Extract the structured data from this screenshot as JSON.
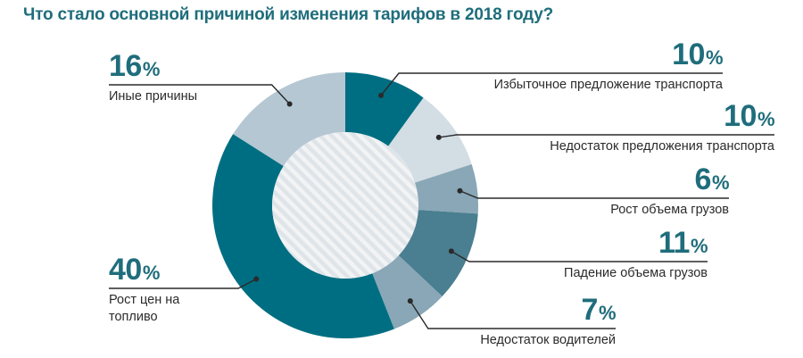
{
  "chart_data": {
    "type": "pie",
    "title": "Что стало основной причиной изменения тарифов в 2018 году?",
    "unit": "%",
    "slices": [
      {
        "label": "Избыточное предложение транспорта",
        "value": 10,
        "color": "#006e82"
      },
      {
        "label": "Недостаток предложения транспорта",
        "value": 10,
        "color": "#d3dde4"
      },
      {
        "label": "Рост объема грузов",
        "value": 6,
        "color": "#89a7b6"
      },
      {
        "label": "Падение объема грузов",
        "value": 11,
        "color": "#4a7e91"
      },
      {
        "label": "Недостаток водителей",
        "value": 7,
        "color": "#89a7b6"
      },
      {
        "label": "Рост цен на топливо",
        "value": 40,
        "color": "#006e82"
      },
      {
        "label": "Иные причины",
        "value": 16,
        "color": "#b5c7d3"
      }
    ]
  }
}
